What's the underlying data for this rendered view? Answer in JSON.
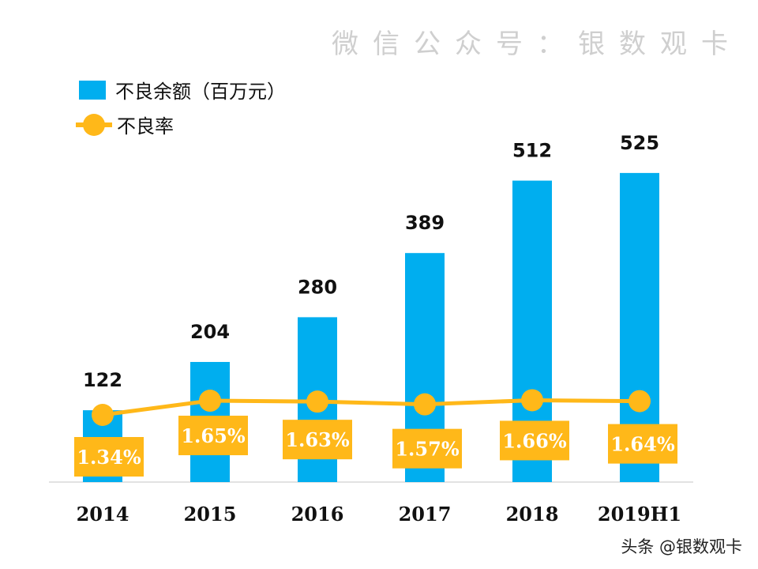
{
  "chart_data": {
    "type": "bar+line",
    "categories": [
      "2014",
      "2015",
      "2016",
      "2017",
      "2018",
      "2019H1"
    ],
    "series": [
      {
        "name": "不良余额（百万元）",
        "type": "bar",
        "values": [
          122,
          204,
          280,
          389,
          512,
          525
        ],
        "color": "#00AEEF"
      },
      {
        "name": "不良率",
        "type": "line",
        "values": [
          1.34,
          1.65,
          1.63,
          1.57,
          1.66,
          1.64
        ],
        "labels": [
          "1.34%",
          "1.65%",
          "1.63%",
          "1.57%",
          "1.66%",
          "1.64%"
        ],
        "color": "#FFB819"
      }
    ],
    "legend": "top-left",
    "grid": false
  },
  "watermark": "微信公众号：银数观卡",
  "credit": "头条 @银数观卡"
}
